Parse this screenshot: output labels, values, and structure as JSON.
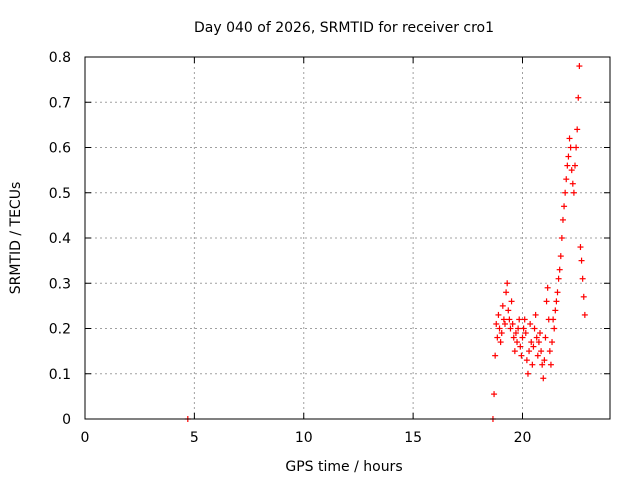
{
  "chart_data": {
    "type": "scatter",
    "title": "Day 040 of 2026, SRMTID for receiver cro1",
    "xlabel": "GPS time / hours",
    "ylabel": "SRMTID / TECUs",
    "xlim": [
      0,
      24
    ],
    "ylim": [
      0,
      0.8
    ],
    "xticks": [
      0,
      5,
      10,
      15,
      20
    ],
    "yticks": [
      0,
      0.1,
      0.2,
      0.3,
      0.4,
      0.5,
      0.6,
      0.7,
      0.8
    ],
    "grid": true,
    "marker": "+",
    "color": "#ff0000",
    "series": [
      {
        "name": "SRMTID",
        "x": [
          4.7,
          18.65,
          18.7,
          18.75,
          18.8,
          18.85,
          18.9,
          18.95,
          19.0,
          19.05,
          19.1,
          19.15,
          19.2,
          19.25,
          19.3,
          19.35,
          19.4,
          19.45,
          19.5,
          19.55,
          19.6,
          19.65,
          19.7,
          19.75,
          19.8,
          19.85,
          19.9,
          19.95,
          20.0,
          20.05,
          20.1,
          20.15,
          20.2,
          20.25,
          20.3,
          20.35,
          20.4,
          20.45,
          20.5,
          20.55,
          20.6,
          20.65,
          20.7,
          20.75,
          20.8,
          20.85,
          20.9,
          20.95,
          21.0,
          21.05,
          21.1,
          21.15,
          21.2,
          21.25,
          21.3,
          21.35,
          21.4,
          21.45,
          21.5,
          21.55,
          21.6,
          21.65,
          21.7,
          21.75,
          21.8,
          21.85,
          21.9,
          21.95,
          22.0,
          22.05,
          22.1,
          22.15,
          22.2,
          22.25,
          22.3,
          22.35,
          22.4,
          22.45,
          22.5,
          22.55,
          22.6,
          22.65,
          22.7,
          22.75,
          22.8,
          22.85
        ],
        "y": [
          0.0,
          0.0,
          0.055,
          0.14,
          0.21,
          0.18,
          0.23,
          0.2,
          0.17,
          0.19,
          0.25,
          0.22,
          0.21,
          0.28,
          0.3,
          0.24,
          0.22,
          0.2,
          0.26,
          0.21,
          0.18,
          0.15,
          0.19,
          0.17,
          0.2,
          0.22,
          0.16,
          0.14,
          0.18,
          0.2,
          0.22,
          0.19,
          0.13,
          0.1,
          0.15,
          0.21,
          0.17,
          0.12,
          0.16,
          0.2,
          0.23,
          0.18,
          0.14,
          0.17,
          0.19,
          0.15,
          0.12,
          0.09,
          0.13,
          0.18,
          0.26,
          0.29,
          0.22,
          0.15,
          0.12,
          0.17,
          0.22,
          0.2,
          0.24,
          0.26,
          0.28,
          0.31,
          0.33,
          0.36,
          0.4,
          0.44,
          0.47,
          0.5,
          0.53,
          0.56,
          0.58,
          0.62,
          0.6,
          0.55,
          0.52,
          0.5,
          0.56,
          0.6,
          0.64,
          0.71,
          0.78,
          0.38,
          0.35,
          0.31,
          0.27,
          0.23
        ]
      }
    ]
  }
}
